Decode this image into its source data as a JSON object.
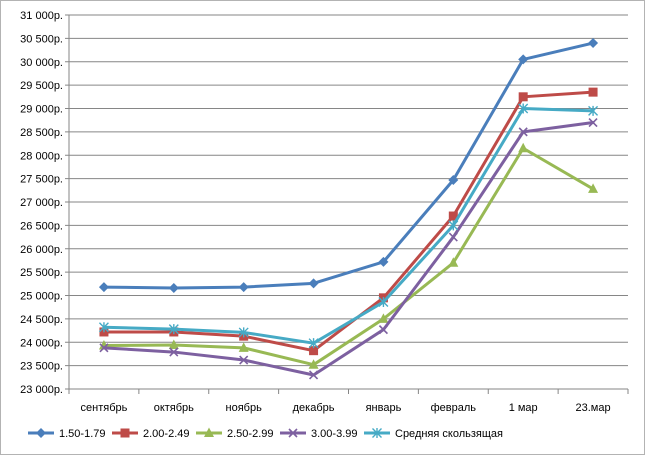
{
  "chart_data": {
    "type": "line",
    "title": "",
    "xlabel": "",
    "ylabel": "",
    "categories": [
      "сентябрь",
      "октябрь",
      "ноябрь",
      "декабрь",
      "январь",
      "февраль",
      "1 мар",
      "23.мар"
    ],
    "ylim": [
      23000,
      31000
    ],
    "ytick_step": 500,
    "ytick_labels": [
      "23 000р.",
      "23 500р.",
      "24 000р.",
      "24 500р.",
      "25 000р.",
      "25 500р.",
      "26 000р.",
      "26 500р.",
      "27 000р.",
      "27 500р.",
      "28 000р.",
      "28 500р.",
      "29 000р.",
      "29 500р.",
      "30 000р.",
      "30 500р.",
      "31 000р."
    ],
    "grid": "horizontal",
    "legend_position": "bottom",
    "series": [
      {
        "name": "1.50-1.79",
        "color": "#4a7ebb",
        "marker": "diamond",
        "values": [
          25180,
          25160,
          25180,
          25260,
          25720,
          27470,
          30050,
          30400
        ]
      },
      {
        "name": "2.00-2.49",
        "color": "#be4b48",
        "marker": "square",
        "values": [
          24220,
          24220,
          24130,
          23820,
          24950,
          26700,
          29250,
          29350
        ]
      },
      {
        "name": "2.50-2.99",
        "color": "#98b954",
        "marker": "triangle",
        "values": [
          23930,
          23940,
          23880,
          23520,
          24500,
          25700,
          28150,
          27280
        ]
      },
      {
        "name": "3.00-3.99",
        "color": "#7d60a0",
        "marker": "x",
        "values": [
          23880,
          23790,
          23620,
          23300,
          24270,
          26250,
          28500,
          28700
        ]
      },
      {
        "name": "Средняя скользящая",
        "color": "#46aac5",
        "marker": "asterisk",
        "values": [
          24320,
          24280,
          24210,
          23980,
          24860,
          26500,
          29000,
          28950
        ]
      }
    ]
  }
}
